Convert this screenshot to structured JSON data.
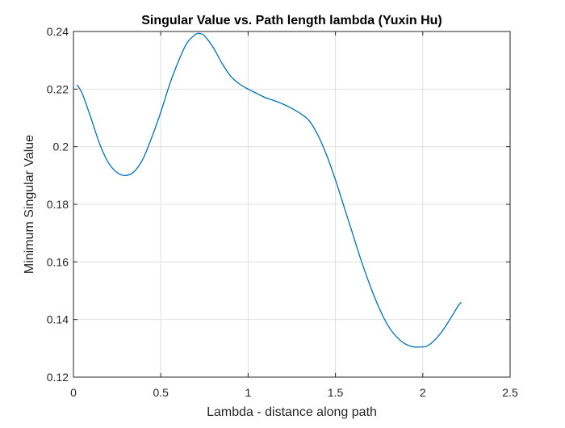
{
  "chart_data": {
    "type": "line",
    "title": "Singular Value vs. Path length lambda (Yuxin Hu)",
    "xlabel": "Lambda - distance along path",
    "ylabel": "Minimum Singular Value",
    "xlim": [
      0,
      2.5
    ],
    "ylim": [
      0.12,
      0.24
    ],
    "xticks": [
      0,
      0.5,
      1,
      1.5,
      2,
      2.5
    ],
    "xtick_labels": [
      "0",
      "0.5",
      "1",
      "1.5",
      "2",
      "2.5"
    ],
    "yticks": [
      0.12,
      0.14,
      0.16,
      0.18,
      0.2,
      0.22,
      0.24
    ],
    "ytick_labels": [
      "0.12",
      "0.14",
      "0.16",
      "0.18",
      "0.2",
      "0.22",
      "0.24"
    ],
    "grid": true,
    "line_color": "#0072BD",
    "series": [
      {
        "x": [
          0.02,
          0.05,
          0.1,
          0.15,
          0.2,
          0.25,
          0.3,
          0.35,
          0.4,
          0.45,
          0.5,
          0.55,
          0.6,
          0.65,
          0.7,
          0.725,
          0.75,
          0.8,
          0.85,
          0.9,
          0.95,
          1.0,
          1.05,
          1.1,
          1.15,
          1.2,
          1.25,
          1.3,
          1.35,
          1.4,
          1.45,
          1.5,
          1.55,
          1.6,
          1.65,
          1.7,
          1.75,
          1.8,
          1.85,
          1.9,
          1.95,
          2.0,
          2.02,
          2.05,
          2.1,
          2.15,
          2.2,
          2.22
        ],
        "y": [
          0.2215,
          0.2185,
          0.21,
          0.201,
          0.1945,
          0.191,
          0.19,
          0.1915,
          0.196,
          0.2035,
          0.212,
          0.2215,
          0.2295,
          0.236,
          0.239,
          0.2393,
          0.2385,
          0.2345,
          0.229,
          0.2245,
          0.2218,
          0.22,
          0.2185,
          0.217,
          0.216,
          0.2148,
          0.2133,
          0.2115,
          0.209,
          0.204,
          0.197,
          0.1885,
          0.179,
          0.1695,
          0.16,
          0.1515,
          0.144,
          0.138,
          0.134,
          0.1315,
          0.1305,
          0.1305,
          0.1307,
          0.1318,
          0.135,
          0.1395,
          0.1445,
          0.146
        ]
      }
    ]
  }
}
